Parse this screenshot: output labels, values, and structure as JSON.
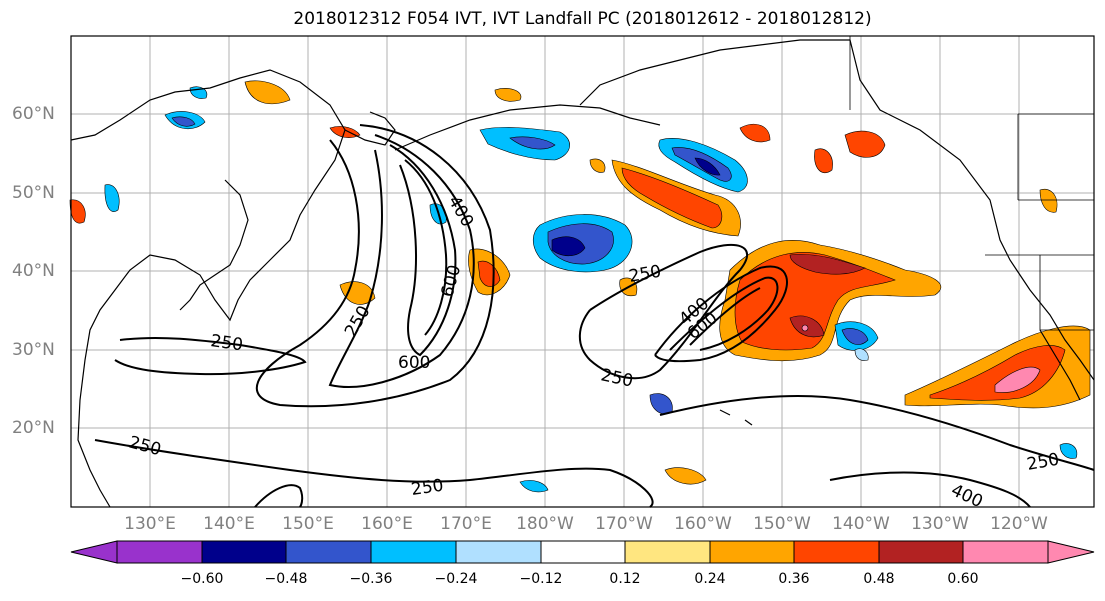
{
  "title": "2018012312 F054 IVT, IVT Landfall PC (2018012612 - 2018012812)",
  "lat_labels": [
    "60°N",
    "50°N",
    "40°N",
    "30°N",
    "20°N"
  ],
  "lon_labels": [
    "130°E",
    "140°E",
    "150°E",
    "160°E",
    "170°E",
    "180°W",
    "170°W",
    "160°W",
    "150°W",
    "140°W",
    "130°W",
    "120°W"
  ],
  "contour_labels": [
    "250",
    "400",
    "600",
    "250",
    "600",
    "250",
    "400",
    "600",
    "250",
    "250",
    "250",
    "400"
  ],
  "colorbar": {
    "ticks": [
      "−0.60",
      "−0.48",
      "−0.36",
      "−0.24",
      "−0.12",
      "0.12",
      "0.24",
      "0.36",
      "0.48",
      "0.60"
    ],
    "colors": [
      "#9932CC",
      "#00008B",
      "#3355CC",
      "#00BFFF",
      "#B0E0FF",
      "#FFFFFF",
      "#FFE680",
      "#FFA500",
      "#FF4500",
      "#B22222",
      "#FF88B0"
    ]
  }
}
